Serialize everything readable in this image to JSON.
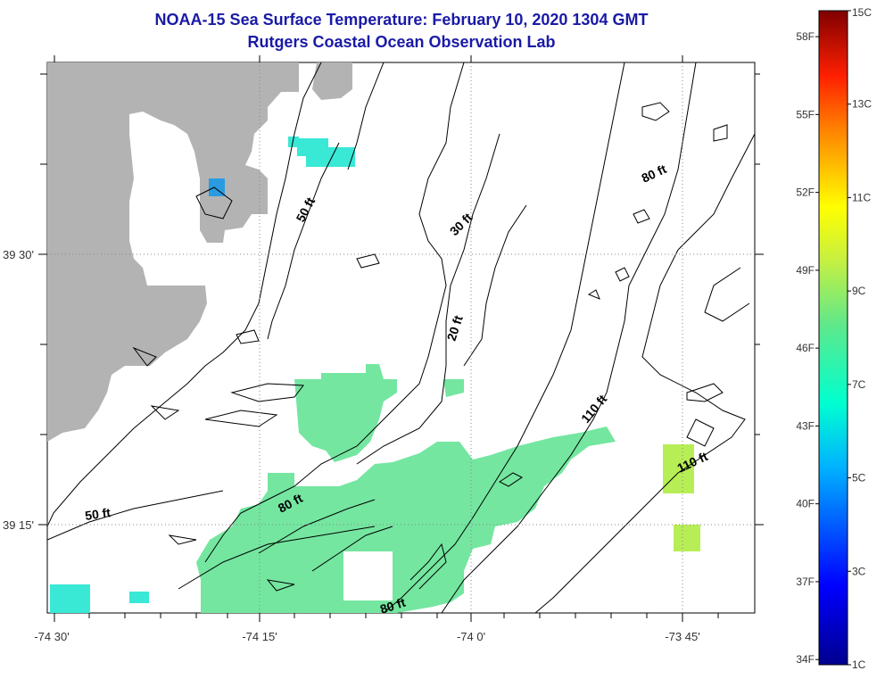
{
  "title": {
    "line1": "NOAA-15 Sea Surface Temperature:  February 10, 2020 1304 GMT",
    "line2": "Rutgers Coastal Ocean Observation Lab"
  },
  "axes": {
    "x_ticks": [
      "-74 30'",
      "-74 15'",
      "-74 0'",
      "-73 45'"
    ],
    "y_ticks": [
      "39 30'",
      "39 15'"
    ]
  },
  "colorbar": {
    "fahrenheit": [
      "58F",
      "55F",
      "52F",
      "49F",
      "46F",
      "43F",
      "40F",
      "37F",
      "34F"
    ],
    "celsius": [
      "15C",
      "13C",
      "11C",
      "9C",
      "7C",
      "5C",
      "3C",
      "1C"
    ],
    "min_c": 1,
    "max_c": 15
  },
  "contour_labels": [
    "50 ft",
    "30 ft",
    "80 ft",
    "20 ft",
    "110 ft",
    "110 ft",
    "50 ft",
    "80 ft",
    "80 ft"
  ],
  "colors": {
    "title": "#1a1aa6",
    "land": "#b3b3b3",
    "water_warm": "#7de39a",
    "water_cool": "#3ae8d6"
  }
}
